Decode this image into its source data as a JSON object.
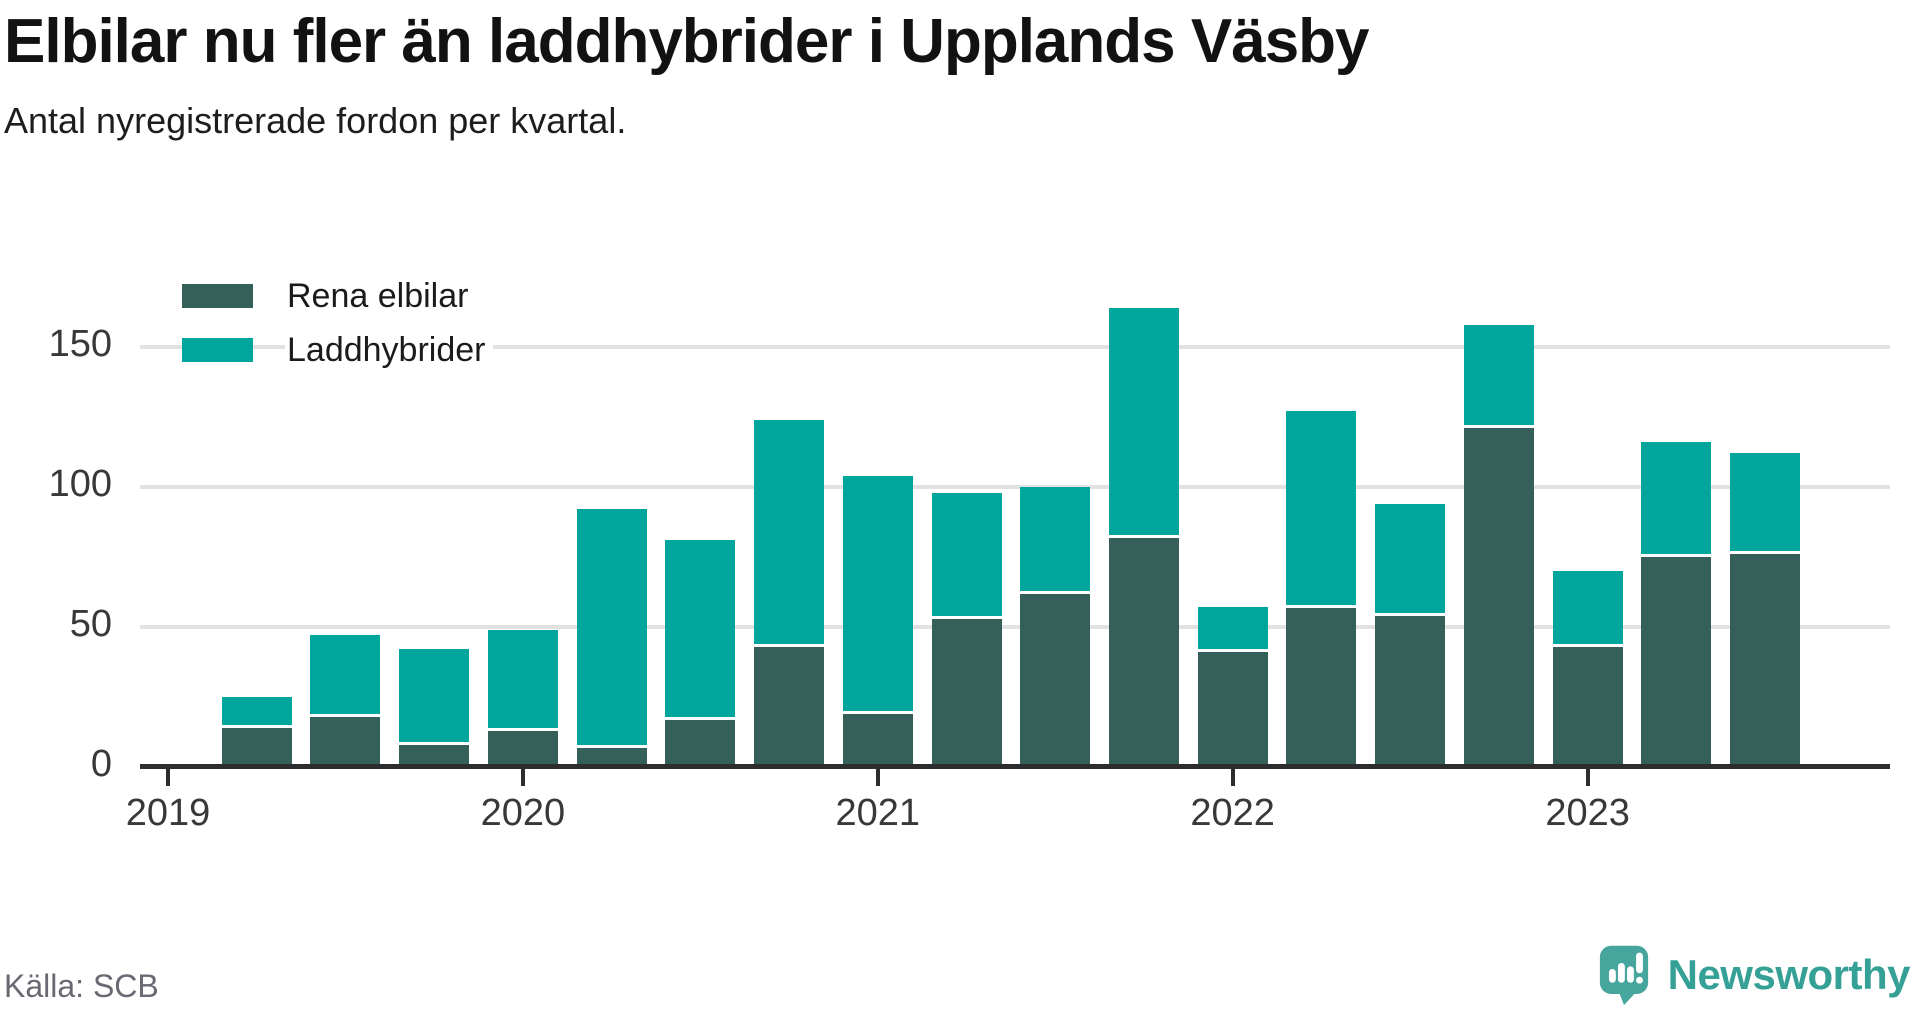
{
  "header": {
    "title": "Elbilar nu fler än laddhybrider i Upplands Väsby",
    "subtitle": "Antal nyregistrerade fordon per kvartal."
  },
  "legend": [
    {
      "label": "Rena elbilar",
      "color": "#35605a"
    },
    {
      "label": "Laddhybrider",
      "color": "#00a69c"
    }
  ],
  "footer": {
    "source": "Källa: SCB",
    "brand": "Newsworthy"
  },
  "colors": {
    "rena_elbilar": "#35605a",
    "laddhybrider": "#00a69c",
    "gridline": "#e2e2e2",
    "axis": "#2d2d2d",
    "brand_teal": "#46a59d",
    "brand_text_teal": "#35a096"
  },
  "chart_data": {
    "type": "bar",
    "stacked": true,
    "title": "Elbilar nu fler än laddhybrider i Upplands Väsby",
    "subtitle": "Antal nyregistrerade fordon per kvartal.",
    "xlabel": "",
    "ylabel": "Antal nyregistrerade fordon",
    "categories": [
      "2019 Q2",
      "2019 Q3",
      "2019 Q4",
      "2020 Q1",
      "2020 Q2",
      "2020 Q3",
      "2020 Q4",
      "2021 Q1",
      "2021 Q2",
      "2021 Q3",
      "2021 Q4",
      "2022 Q1",
      "2022 Q2",
      "2022 Q3",
      "2022 Q4",
      "2023 Q1",
      "2023 Q2",
      "2023 Q3"
    ],
    "series": [
      {
        "name": "Rena elbilar",
        "color": "#35605a",
        "values": [
          15,
          19,
          9,
          14,
          8,
          18,
          44,
          20,
          54,
          63,
          83,
          42,
          58,
          55,
          122,
          44,
          76,
          77
        ]
      },
      {
        "name": "Laddhybrider",
        "color": "#00a69c",
        "values": [
          10,
          28,
          33,
          35,
          84,
          63,
          80,
          84,
          44,
          37,
          81,
          15,
          69,
          39,
          36,
          26,
          40,
          35
        ]
      }
    ],
    "totals": [
      25,
      47,
      42,
      49,
      92,
      81,
      124,
      104,
      98,
      100,
      164,
      57,
      127,
      94,
      158,
      70,
      116,
      112
    ],
    "x_tick_labels": [
      "2019",
      "2020",
      "2021",
      "2022",
      "2023"
    ],
    "y_ticks": [
      0,
      50,
      100,
      150
    ],
    "ylim": [
      0,
      175
    ],
    "grid": "horizontal",
    "legend_position": "top-left"
  }
}
